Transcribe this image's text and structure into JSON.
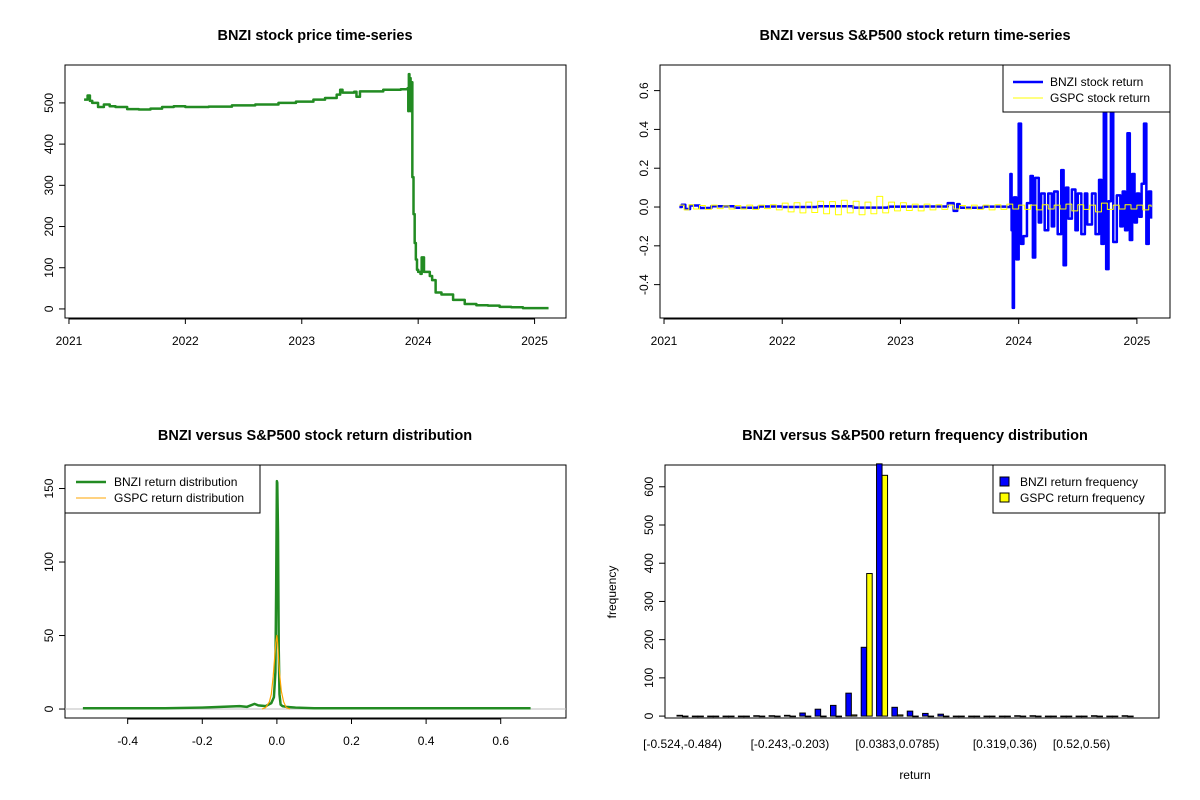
{
  "chart_data": [
    {
      "type": "line",
      "title": "BNZI stock price time-series",
      "xlabel": "",
      "ylabel": "",
      "xlim": [
        2020.966,
        2025.27
      ],
      "ylim": [
        -22,
        592
      ],
      "xticks": [
        {
          "v": 2021,
          "label": "2021"
        },
        {
          "v": 2022,
          "label": "2022"
        },
        {
          "v": 2023,
          "label": "2023"
        },
        {
          "v": 2024,
          "label": "2024"
        },
        {
          "v": 2025,
          "label": "2025"
        }
      ],
      "yticks": [
        {
          "v": 0,
          "label": "0"
        },
        {
          "v": 100,
          "label": "100"
        },
        {
          "v": 200,
          "label": "200"
        },
        {
          "v": 300,
          "label": "300"
        },
        {
          "v": 400,
          "label": "400"
        },
        {
          "v": 500,
          "label": "500"
        }
      ],
      "series": [
        {
          "name": "BNZI",
          "color": "#228B22",
          "x": [
            2021.13,
            2021.16,
            2021.18,
            2021.2,
            2021.25,
            2021.3,
            2021.35,
            2021.4,
            2021.5,
            2021.6,
            2021.7,
            2021.8,
            2021.9,
            2022.0,
            2022.2,
            2022.4,
            2022.6,
            2022.8,
            2022.95,
            2023.1,
            2023.2,
            2023.3,
            2023.33,
            2023.35,
            2023.45,
            2023.47,
            2023.5,
            2023.6,
            2023.7,
            2023.85,
            2023.91,
            2023.915,
            2023.92,
            2023.925,
            2023.93,
            2023.935,
            2023.94,
            2023.95,
            2023.96,
            2023.97,
            2023.98,
            2023.99,
            2024.0,
            2024.02,
            2024.03,
            2024.05,
            2024.1,
            2024.12,
            2024.15,
            2024.2,
            2024.3,
            2024.4,
            2024.5,
            2024.6,
            2024.7,
            2024.8,
            2024.9,
            2025.0,
            2025.12
          ],
          "y": [
            508,
            518,
            505,
            500,
            490,
            496,
            492,
            490,
            485,
            484,
            486,
            490,
            492,
            490,
            491,
            494,
            496,
            500,
            503,
            508,
            512,
            520,
            532,
            525,
            527,
            515,
            528,
            528,
            532,
            533,
            536,
            480,
            570,
            500,
            560,
            480,
            550,
            320,
            230,
            160,
            120,
            95,
            90,
            85,
            125,
            90,
            80,
            70,
            40,
            35,
            22,
            12,
            9,
            8,
            5,
            4,
            2,
            2,
            2
          ]
        }
      ]
    },
    {
      "type": "line",
      "title": "BNZI versus S&P500 stock return time-series",
      "xlabel": "",
      "ylabel": "",
      "xlim": [
        2020.966,
        2025.28
      ],
      "ylim": [
        -0.572,
        0.732
      ],
      "xticks": [
        {
          "v": 2021,
          "label": "2021"
        },
        {
          "v": 2022,
          "label": "2022"
        },
        {
          "v": 2023,
          "label": "2023"
        },
        {
          "v": 2024,
          "label": "2024"
        },
        {
          "v": 2025,
          "label": "2025"
        }
      ],
      "yticks": [
        {
          "v": -0.4,
          "label": "-0.4"
        },
        {
          "v": -0.2,
          "label": "-0.2"
        },
        {
          "v": 0,
          "label": "0.0"
        },
        {
          "v": 0.2,
          "label": "0.2"
        },
        {
          "v": 0.4,
          "label": "0.4"
        },
        {
          "v": 0.6,
          "label": "0.6"
        }
      ],
      "legend": {
        "position": "top-right",
        "entries": [
          "BNZI stock return",
          "GSPC stock return"
        ]
      },
      "series": [
        {
          "name": "BNZI stock return",
          "color": "#0000FF",
          "width": 2.5,
          "x": [
            2021.13,
            2021.15,
            2021.18,
            2021.22,
            2021.3,
            2021.4,
            2021.6,
            2021.8,
            2022.0,
            2022.3,
            2022.6,
            2022.9,
            2023.2,
            2023.4,
            2023.45,
            2023.48,
            2023.5,
            2023.7,
            2023.9,
            2023.93,
            2023.94,
            2023.95,
            2023.96,
            2023.98,
            2024.0,
            2024.02,
            2024.04,
            2024.07,
            2024.1,
            2024.12,
            2024.14,
            2024.17,
            2024.19,
            2024.22,
            2024.25,
            2024.28,
            2024.3,
            2024.33,
            2024.36,
            2024.38,
            2024.4,
            2024.42,
            2024.45,
            2024.48,
            2024.5,
            2024.53,
            2024.56,
            2024.58,
            2024.62,
            2024.65,
            2024.68,
            2024.7,
            2024.72,
            2024.74,
            2024.76,
            2024.78,
            2024.8,
            2024.83,
            2024.86,
            2024.88,
            2024.9,
            2024.92,
            2024.94,
            2024.96,
            2024.98,
            2025.0,
            2025.02,
            2025.04,
            2025.06,
            2025.08,
            2025.1,
            2025.12
          ],
          "y": [
            0,
            0.012,
            -0.01,
            0.008,
            -0.005,
            0.004,
            -0.004,
            0.003,
            0,
            0.004,
            -0.003,
            0.002,
            0.003,
            0.02,
            -0.02,
            0.015,
            -0.004,
            0.002,
            0,
            0.17,
            -0.12,
            -0.52,
            0.05,
            -0.27,
            0.43,
            -0.19,
            -0.15,
            0.02,
            0.16,
            -0.26,
            0.15,
            -0.08,
            0.07,
            -0.12,
            0.07,
            -0.1,
            0.08,
            -0.14,
            0.19,
            -0.3,
            0.1,
            -0.06,
            0.09,
            -0.12,
            0.07,
            -0.14,
            0.07,
            -0.09,
            0.07,
            -0.14,
            0.14,
            -0.19,
            0.5,
            -0.32,
            0.03,
            0.5,
            -0.18,
            0.06,
            -0.1,
            0.08,
            -0.12,
            0.38,
            -0.17,
            0.17,
            -0.08,
            0.07,
            -0.05,
            0.12,
            0.43,
            -0.19,
            0.08,
            -0.06
          ]
        },
        {
          "name": "GSPC stock return",
          "color": "#FFFF00",
          "width": 1,
          "x": [
            2021.13,
            2021.17,
            2021.21,
            2021.25,
            2021.3,
            2021.35,
            2021.4,
            2021.45,
            2021.5,
            2021.55,
            2021.6,
            2021.65,
            2021.7,
            2021.75,
            2021.8,
            2021.85,
            2021.9,
            2021.95,
            2022.0,
            2022.05,
            2022.1,
            2022.15,
            2022.2,
            2022.25,
            2022.3,
            2022.35,
            2022.4,
            2022.45,
            2022.5,
            2022.55,
            2022.6,
            2022.65,
            2022.7,
            2022.75,
            2022.8,
            2022.85,
            2022.9,
            2022.95,
            2023.0,
            2023.05,
            2023.1,
            2023.15,
            2023.2,
            2023.25,
            2023.3,
            2023.35,
            2023.4,
            2023.45,
            2023.5,
            2023.55,
            2023.6,
            2023.65,
            2023.7,
            2023.75,
            2023.8,
            2023.85,
            2023.9,
            2023.95,
            2024.0,
            2024.05,
            2024.1,
            2024.15,
            2024.2,
            2024.25,
            2024.3,
            2024.35,
            2024.4,
            2024.45,
            2024.5,
            2024.55,
            2024.6,
            2024.65,
            2024.7,
            2024.75,
            2024.8,
            2024.85,
            2024.9,
            2024.95,
            2025.0,
            2025.05,
            2025.1,
            2025.12
          ],
          "y": [
            0.01,
            -0.015,
            0.012,
            -0.01,
            0.008,
            -0.012,
            0.01,
            -0.008,
            0.006,
            -0.01,
            0.008,
            -0.01,
            0.01,
            -0.012,
            0.01,
            -0.008,
            0.012,
            -0.015,
            0.02,
            -0.025,
            0.022,
            -0.03,
            0.025,
            -0.028,
            0.03,
            -0.035,
            0.028,
            -0.04,
            0.035,
            -0.03,
            0.03,
            -0.04,
            0.025,
            -0.035,
            0.055,
            -0.03,
            0.025,
            -0.02,
            0.022,
            -0.018,
            0.015,
            -0.02,
            0.015,
            -0.015,
            0.012,
            -0.012,
            0.01,
            -0.01,
            0.008,
            -0.01,
            0.01,
            -0.012,
            0.01,
            -0.015,
            0.012,
            -0.012,
            0.015,
            -0.01,
            0.01,
            -0.012,
            0.01,
            -0.015,
            0.012,
            -0.01,
            0.01,
            -0.01,
            0.015,
            -0.02,
            0.012,
            -0.012,
            0.01,
            -0.025,
            0.02,
            -0.012,
            0.01,
            -0.01,
            0.012,
            -0.01,
            0.01,
            -0.015,
            0.01,
            0
          ]
        }
      ]
    },
    {
      "type": "line",
      "title": "BNZI versus S&P500 stock return distribution",
      "xlabel": "",
      "ylabel": "",
      "xlim": [
        -0.568,
        0.775
      ],
      "ylim": [
        -6.1,
        166
      ],
      "xticks": [
        {
          "v": -0.4,
          "label": "-0.4"
        },
        {
          "v": -0.2,
          "label": "-0.2"
        },
        {
          "v": 0,
          "label": "0.0"
        },
        {
          "v": 0.2,
          "label": "0.2"
        },
        {
          "v": 0.4,
          "label": "0.4"
        },
        {
          "v": 0.6,
          "label": "0.6"
        }
      ],
      "yticks": [
        {
          "v": 0,
          "label": "0"
        },
        {
          "v": 50,
          "label": "50"
        },
        {
          "v": 100,
          "label": "100"
        },
        {
          "v": 150,
          "label": "150"
        }
      ],
      "legend": {
        "position": "top-left",
        "entries": [
          "BNZI return distribution",
          "GSPC return distribution"
        ]
      },
      "series": [
        {
          "name": "BNZI return distribution",
          "color": "#228B22",
          "width": 2.5,
          "x": [
            -0.52,
            -0.3,
            -0.2,
            -0.15,
            -0.1,
            -0.08,
            -0.06,
            -0.05,
            -0.03,
            -0.015,
            -0.008,
            -0.004,
            -0.002,
            0,
            0.001,
            0.003,
            0.005,
            0.007,
            0.01,
            0.015,
            0.025,
            0.05,
            0.1,
            0.2,
            0.4,
            0.68
          ],
          "y": [
            0.5,
            0.5,
            1,
            1.5,
            2,
            1.5,
            3.5,
            2.5,
            2,
            4,
            8,
            25,
            80,
            155,
            154,
            120,
            40,
            10,
            3,
            2,
            1.5,
            1,
            0.5,
            0.5,
            0.5,
            0.5
          ]
        },
        {
          "name": "GSPC return distribution",
          "color": "#FFA500",
          "width": 1.2,
          "x": [
            -0.04,
            -0.03,
            -0.02,
            -0.015,
            -0.01,
            -0.006,
            -0.003,
            0,
            0.002,
            0.005,
            0.008,
            0.012,
            0.018,
            0.025,
            0.035
          ],
          "y": [
            0,
            1,
            5,
            10,
            22,
            35,
            45,
            50,
            45,
            32,
            22,
            12,
            5,
            1,
            0
          ]
        }
      ]
    },
    {
      "type": "bar",
      "title": "BNZI versus S&P500 return frequency distribution",
      "xlabel": "return",
      "ylabel": "frequency",
      "ylim": [
        -5,
        657
      ],
      "yticks": [
        {
          "v": 0,
          "label": "0"
        },
        {
          "v": 100,
          "label": "100"
        },
        {
          "v": 200,
          "label": "200"
        },
        {
          "v": 300,
          "label": "300"
        },
        {
          "v": 400,
          "label": "400"
        },
        {
          "v": 500,
          "label": "500"
        },
        {
          "v": 600,
          "label": "600"
        }
      ],
      "bin_tick_labels": [
        {
          "bin": 0,
          "label": "[-0.524,-0.484)"
        },
        {
          "bin": 7,
          "label": "[-0.243,-0.203)"
        },
        {
          "bin": 14,
          "label": "[0.0383,0.0785)"
        },
        {
          "bin": 21,
          "label": "[0.319,0.36)"
        },
        {
          "bin": 26,
          "label": "[0.52,0.56)"
        }
      ],
      "legend": {
        "position": "top-right",
        "entries": [
          "BNZI return frequency",
          "GSPC return frequency"
        ]
      },
      "series": [
        {
          "name": "BNZI return frequency",
          "color": "#0000FF",
          "values": [
            2,
            0,
            0,
            0,
            0,
            1,
            1,
            2,
            8,
            18,
            28,
            60,
            180,
            660,
            23,
            13,
            7,
            5,
            0,
            0,
            0,
            0,
            1,
            1,
            0,
            0,
            0,
            1,
            0,
            1
          ]
        },
        {
          "name": "GSPC return frequency",
          "color": "#FFFF00",
          "values": [
            0,
            0,
            0,
            0,
            0,
            0,
            0,
            0,
            0,
            0,
            0,
            3,
            373,
            630,
            3,
            0,
            0,
            0,
            0,
            0,
            0,
            0,
            0,
            0,
            0,
            0,
            0,
            0,
            0,
            0
          ]
        }
      ]
    }
  ]
}
